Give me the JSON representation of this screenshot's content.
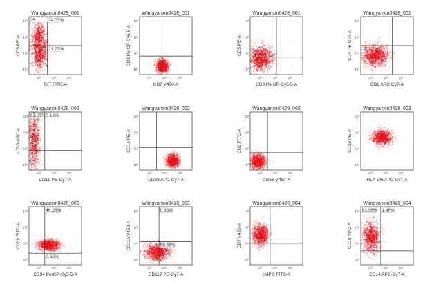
{
  "chart_data": [
    {
      "type": "scatter",
      "title": "Wangyanxin0428_001",
      "xlabel": "TdT FITC-A",
      "ylabel": "CD5 PE-A",
      "y_ticks": [
        "10³",
        "10²",
        "10¹",
        "10⁰"
      ],
      "x_ticks": [
        "10⁰",
        "10¹",
        "10²"
      ],
      "quadrant_labels": [
        {
          "text": "25......",
          "pos": "top-left"
        },
        {
          "text": "24.07%",
          "pos": "top-right"
        },
        {
          "text": "21.27%",
          "pos": "bottom-right"
        }
      ],
      "clusters": [
        {
          "cx": 0.2,
          "cy": 0.58,
          "sx": 0.09,
          "sy": 0.18,
          "n": 600
        },
        {
          "cx": 0.18,
          "cy": 0.3,
          "sx": 0.06,
          "sy": 0.12,
          "n": 200
        }
      ],
      "gate": [
        0.35,
        0.5
      ]
    },
    {
      "type": "scatter",
      "title": "Wangyanxin0428_001",
      "xlabel": "CD7 V450-A",
      "ylabel": "CD3 PerCP-Cy5-5-A",
      "y_ticks": [
        "10³",
        "10²",
        "10¹",
        "10⁰"
      ],
      "x_ticks": [
        "10⁰",
        "10¹",
        "10²"
      ],
      "quadrant_labels": [],
      "clusters": [
        {
          "cx": 0.43,
          "cy": 0.85,
          "sx": 0.06,
          "sy": 0.06,
          "n": 650
        }
      ],
      "gate": [
        0.43,
        0.68
      ]
    },
    {
      "type": "scatter",
      "title": "Wangyanxin0428_001",
      "xlabel": "CD3 PerCP-Cy5-5-A",
      "ylabel": "CD5 PE-A",
      "y_ticks": [
        "10³",
        "10²",
        "10¹",
        "10⁰"
      ],
      "x_ticks": [
        "10⁰",
        "10¹",
        "10²"
      ],
      "quadrant_labels": [],
      "clusters": [
        {
          "cx": 0.2,
          "cy": 0.72,
          "sx": 0.13,
          "sy": 0.12,
          "n": 650
        }
      ],
      "gate": [
        0.5,
        0.7
      ]
    },
    {
      "type": "scatter",
      "title": "Wangyanxin0428_001",
      "xlabel": "CD8 APC-Cy7-A",
      "ylabel": "CD4 PE-Cy7-A",
      "y_ticks": [
        "10³",
        "10²",
        "10¹",
        "10⁰"
      ],
      "x_ticks": [
        "10⁰",
        "10¹",
        "10²"
      ],
      "quadrant_labels": [],
      "clusters": [
        {
          "cx": 0.28,
          "cy": 0.67,
          "sx": 0.14,
          "sy": 0.1,
          "n": 700
        }
      ],
      "gate": [
        0.6,
        0.5
      ]
    },
    {
      "type": "scatter",
      "title": "Wangyanxin0428_002",
      "xlabel": "CD19 PE-Cy7-A",
      "ylabel": "cCD3 APC-A",
      "y_ticks": [
        "10³",
        "10²",
        "10¹",
        "10⁰"
      ],
      "x_ticks": [
        "10⁰",
        "10¹",
        "10²"
      ],
      "quadrant_labels": [
        {
          "text": "63.56%",
          "pos": "top-left"
        },
        {
          "text": "0.18%",
          "pos": "top-right"
        }
      ],
      "clusters": [
        {
          "cx": 0.1,
          "cy": 0.48,
          "sx": 0.06,
          "sy": 0.3,
          "n": 500
        }
      ],
      "gate": [
        0.3,
        0.66
      ]
    },
    {
      "type": "scatter",
      "title": "Wangyanxin0428_002",
      "xlabel": "CD38 APC-Cy7-A",
      "ylabel": "CD1a PE-A",
      "y_ticks": [
        "10³",
        "10²",
        "10¹",
        "10⁰"
      ],
      "x_ticks": [
        "10⁰",
        "10¹",
        "10²"
      ],
      "quadrant_labels": [],
      "clusters": [
        {
          "cx": 0.63,
          "cy": 0.84,
          "sx": 0.07,
          "sy": 0.06,
          "n": 600
        }
      ],
      "gate": [
        0.32,
        0.61
      ]
    },
    {
      "type": "scatter",
      "title": "Wangyanxin0428_002",
      "xlabel": "CD56 V450-A",
      "ylabel": "CD2 FITC-A",
      "y_ticks": [
        "10³",
        "10²",
        "10¹",
        "10⁰"
      ],
      "x_ticks": [
        "10⁰",
        "10¹",
        "10²"
      ],
      "quadrant_labels": [],
      "clusters": [
        {
          "cx": 0.15,
          "cy": 0.85,
          "sx": 0.08,
          "sy": 0.07,
          "n": 600
        }
      ],
      "gate": [
        0.33,
        0.7
      ]
    },
    {
      "type": "scatter",
      "title": "Wangyanxin0428_003",
      "xlabel": "HLA-DR APC-Cy7-A",
      "ylabel": "CD33 PE-A",
      "y_ticks": [
        "10³",
        "10²",
        "10¹",
        "10⁰"
      ],
      "x_ticks": [
        "10⁰",
        "10¹",
        "10²"
      ],
      "quadrant_labels": [],
      "clusters": [
        {
          "cx": 0.4,
          "cy": 0.44,
          "sx": 0.1,
          "sy": 0.07,
          "n": 600
        }
      ],
      "gate": [
        null,
        null
      ]
    },
    {
      "type": "scatter",
      "title": "Wangyanxin0428_003",
      "xlabel": "CD34 PerCP-Cy5-5-A",
      "ylabel": "CD99 FITC-A",
      "y_ticks": [
        "10³",
        "10²",
        "10¹",
        "10⁰"
      ],
      "x_ticks": [
        "10⁰",
        "10¹",
        "10²"
      ],
      "quadrant_labels": [
        {
          "text": "46.28%",
          "pos": "top-right"
        },
        {
          "text": "0.50%",
          "pos": "bottom-right"
        }
      ],
      "clusters": [
        {
          "cx": 0.38,
          "cy": 0.66,
          "sx": 0.11,
          "sy": 0.05,
          "n": 650
        }
      ],
      "gate": [
        0.3,
        0.8
      ]
    },
    {
      "type": "scatter",
      "title": "Wangyanxin0428_003",
      "xlabel": "CD117 PE-Cy7-A",
      "ylabel": "CD11b V450-A",
      "y_ticks": [
        "10³",
        "10²",
        "10¹",
        "10⁰"
      ],
      "x_ticks": [
        "10⁰",
        "10¹",
        "10²"
      ],
      "quadrant_labels": [
        {
          "text": "0.65%",
          "pos": "top-right"
        },
        {
          "text": "56.56%",
          "pos": "bottom-right"
        }
      ],
      "clusters": [
        {
          "cx": 0.33,
          "cy": 0.78,
          "sx": 0.13,
          "sy": 0.08,
          "n": 650
        }
      ],
      "gate": [
        0.37,
        0.6
      ]
    },
    {
      "type": "scatter",
      "title": "Wangyanxin0428_004",
      "xlabel": "cMPO FITC-A",
      "ylabel": "CD7 V450-A",
      "y_ticks": [
        "10³",
        "10²",
        "10¹",
        "10⁰"
      ],
      "x_ticks": [
        "10⁰",
        "10¹",
        "10²"
      ],
      "quadrant_labels": [],
      "clusters": [
        {
          "cx": 0.2,
          "cy": 0.48,
          "sx": 0.08,
          "sy": 0.1,
          "n": 650
        }
      ],
      "gate": [
        0.38,
        0.63
      ]
    },
    {
      "type": "scatter",
      "title": "Wangyanxin0428_004",
      "xlabel": "CD14 APC-Cy7-A",
      "ylabel": "CD10 APC-A",
      "y_ticks": [
        "10³",
        "10²",
        "10¹",
        "10⁰"
      ],
      "x_ticks": [
        "10⁰",
        "10¹",
        "10²"
      ],
      "quadrant_labels": [
        {
          "text": "83.06%",
          "pos": "top-left"
        },
        {
          "text": "1.46%",
          "pos": "top-right"
        }
      ],
      "clusters": [
        {
          "cx": 0.2,
          "cy": 0.52,
          "sx": 0.09,
          "sy": 0.14,
          "n": 600
        }
      ],
      "gate": [
        0.38,
        0.76
      ]
    }
  ],
  "colors": {
    "dot": "#e5141c",
    "axis": "#333333",
    "gate": "#333333",
    "bg": "#ffffff"
  }
}
